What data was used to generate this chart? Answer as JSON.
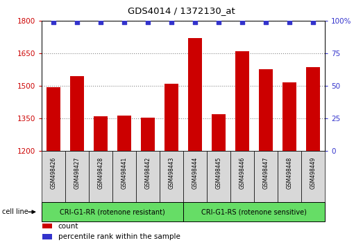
{
  "title": "GDS4014 / 1372130_at",
  "samples": [
    "GSM498426",
    "GSM498427",
    "GSM498428",
    "GSM498441",
    "GSM498442",
    "GSM498443",
    "GSM498444",
    "GSM498445",
    "GSM498446",
    "GSM498447",
    "GSM498448",
    "GSM498449"
  ],
  "counts": [
    1493,
    1545,
    1360,
    1363,
    1352,
    1508,
    1720,
    1368,
    1660,
    1577,
    1515,
    1585
  ],
  "bar_color": "#cc0000",
  "dot_color": "#3333cc",
  "ylim_left": [
    1200,
    1800
  ],
  "ylim_right": [
    0,
    100
  ],
  "yticks_left": [
    1200,
    1350,
    1500,
    1650,
    1800
  ],
  "yticks_right": [
    0,
    25,
    50,
    75,
    100
  ],
  "groups": [
    {
      "label": "CRI-G1-RR (rotenone resistant)",
      "color": "#66dd66",
      "start": 0,
      "end": 6
    },
    {
      "label": "CRI-G1-RS (rotenone sensitive)",
      "color": "#66dd66",
      "start": 6,
      "end": 12
    }
  ],
  "cell_line_label": "cell line",
  "legend_items": [
    {
      "color": "#cc0000",
      "label": "count"
    },
    {
      "color": "#3333cc",
      "label": "percentile rank within the sample"
    }
  ],
  "tick_label_color_left": "#cc0000",
  "tick_label_color_right": "#3333cc",
  "bar_width": 0.6,
  "fig_width": 5.23,
  "fig_height": 3.54,
  "dpi": 100
}
